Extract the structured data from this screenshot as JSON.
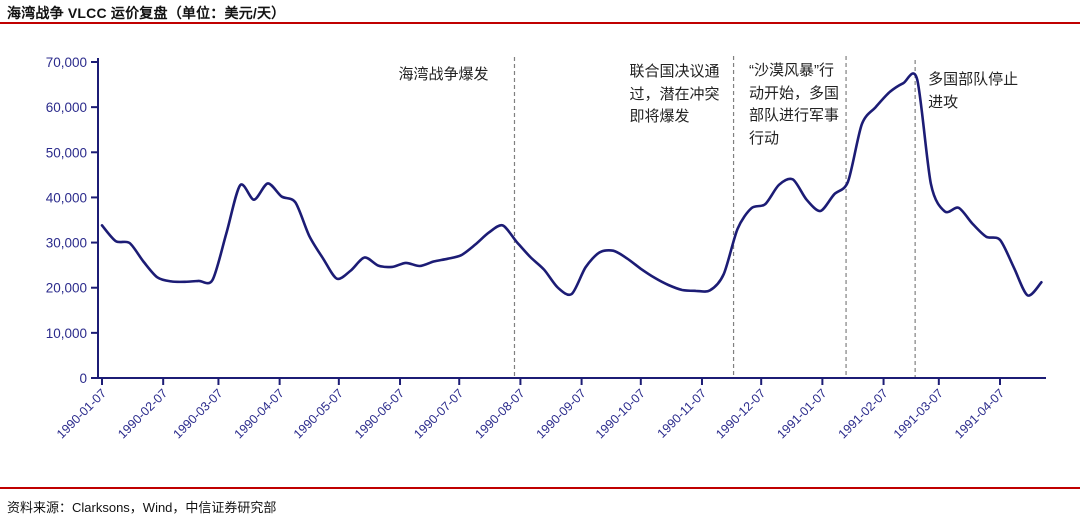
{
  "chart_data": {
    "type": "line",
    "title": "海湾战争 VLCC 运价复盘（单位：美元/天）",
    "source": "资料来源：Clarksons，Wind，中信证券研究部",
    "series_name": "VLCC运价",
    "unit": "美元/天",
    "ylim": [
      0,
      70000
    ],
    "yticks": [
      0,
      10000,
      20000,
      30000,
      40000,
      50000,
      60000,
      70000
    ],
    "ytick_labels": [
      "0",
      "10,000",
      "20,000",
      "30,000",
      "40,000",
      "50,000",
      "60,000",
      "70,000"
    ],
    "x_tick_labels": [
      "1990-01-07",
      "1990-02-07",
      "1990-03-07",
      "1990-04-07",
      "1990-05-07",
      "1990-06-07",
      "1990-07-07",
      "1990-08-07",
      "1990-09-07",
      "1990-10-07",
      "1990-11-07",
      "1990-12-07",
      "1991-01-07",
      "1991-02-07",
      "1991-03-07",
      "1991-04-07"
    ],
    "x": [
      "1990-01-07",
      "1990-01-14",
      "1990-01-21",
      "1990-01-28",
      "1990-02-04",
      "1990-02-11",
      "1990-02-18",
      "1990-02-25",
      "1990-03-04",
      "1990-03-11",
      "1990-03-18",
      "1990-03-25",
      "1990-04-01",
      "1990-04-08",
      "1990-04-15",
      "1990-04-22",
      "1990-04-29",
      "1990-05-06",
      "1990-05-13",
      "1990-05-20",
      "1990-05-27",
      "1990-06-03",
      "1990-06-10",
      "1990-06-17",
      "1990-06-24",
      "1990-07-01",
      "1990-07-08",
      "1990-07-15",
      "1990-07-22",
      "1990-07-29",
      "1990-08-05",
      "1990-08-12",
      "1990-08-19",
      "1990-08-26",
      "1990-09-02",
      "1990-09-09",
      "1990-09-16",
      "1990-09-23",
      "1990-09-30",
      "1990-10-07",
      "1990-10-14",
      "1990-10-21",
      "1990-10-28",
      "1990-11-04",
      "1990-11-11",
      "1990-11-18",
      "1990-11-25",
      "1990-12-02",
      "1990-12-09",
      "1990-12-16",
      "1990-12-23",
      "1990-12-30",
      "1991-01-06",
      "1991-01-13",
      "1991-01-20",
      "1991-01-27",
      "1991-02-03",
      "1991-02-10",
      "1991-02-17",
      "1991-02-24",
      "1991-03-03",
      "1991-03-10",
      "1991-03-17",
      "1991-03-24",
      "1991-03-31",
      "1991-04-07",
      "1991-04-14",
      "1991-04-21",
      "1991-04-28"
    ],
    "values": [
      33800,
      30300,
      29900,
      25800,
      22300,
      21400,
      21300,
      21500,
      21700,
      32000,
      42700,
      39500,
      43100,
      40200,
      38900,
      31500,
      26500,
      22000,
      23800,
      26700,
      24900,
      24600,
      25500,
      24800,
      25800,
      26400,
      27200,
      29500,
      32200,
      33800,
      30200,
      26800,
      24000,
      20000,
      18600,
      24500,
      27800,
      28200,
      26500,
      24200,
      22200,
      20600,
      19500,
      19300,
      19400,
      23000,
      33000,
      37600,
      38500,
      42800,
      44000,
      39500,
      37000,
      40700,
      43500,
      56200,
      60000,
      63300,
      65300,
      66200,
      43000,
      36900,
      37700,
      34200,
      31300,
      30600,
      24500,
      18300,
      21200
    ],
    "annotations": [
      {
        "date": "1990-08-04",
        "label": "海湾战争爆发"
      },
      {
        "date": "1990-11-23",
        "label": "联合国决议通\n过，潜在冲突\n即将爆发"
      },
      {
        "date": "1991-01-19",
        "label": "“沙漠风暴”行\n动开始，多国\n部队进行军事\n行动"
      },
      {
        "date": "1991-02-23",
        "label": "多国部队停止\n进攻"
      }
    ],
    "legend": [],
    "grid": "off",
    "colors": {
      "line": "#1c1c75",
      "axis": "#1c1c75",
      "tick_label": "#2b2b8c",
      "event_line": "#808080",
      "annotation_text": "#222222",
      "rule": "#c00000"
    }
  }
}
